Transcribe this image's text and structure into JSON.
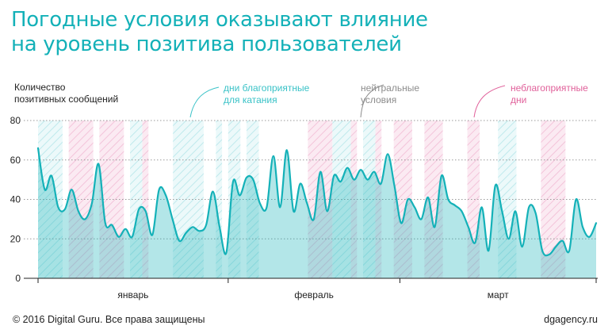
{
  "title_lines": [
    "Погодные условия оказывают влияние",
    "на уровень позитива пользователей"
  ],
  "footer": {
    "copyright": "© 2016 Digital Guru. Все права защищены",
    "site": "dgagency.ru"
  },
  "colors": {
    "title": "#14b1b8",
    "line": "#14b1b8",
    "area": "#b2e8ec",
    "favorable": "#39c2c7",
    "neutral": "#8c8c8c",
    "unfavorable": "#e0609a"
  },
  "chart_data": {
    "type": "area",
    "ylabel_lines": [
      "Количество",
      "позитивных сообщений"
    ],
    "ylim": [
      0,
      80
    ],
    "yticks": [
      "0",
      "20",
      "40",
      "60",
      "80"
    ],
    "xlim": [
      0,
      91
    ],
    "months": [
      {
        "label": "январь",
        "start": 0,
        "end": 31
      },
      {
        "label": "февраль",
        "start": 31,
        "end": 59
      },
      {
        "label": "март",
        "start": 59,
        "end": 91
      }
    ],
    "legend": [
      {
        "key": "favorable",
        "lines": [
          "дни благоприятные",
          "для катания"
        ]
      },
      {
        "key": "neutral",
        "lines": [
          "нейтральные",
          "условия"
        ]
      },
      {
        "key": "unfavorable",
        "lines": [
          "неблагоприятные",
          "дни"
        ]
      }
    ],
    "weather_periods": [
      {
        "start": 0,
        "end": 4,
        "type": "favorable"
      },
      {
        "start": 5,
        "end": 9,
        "type": "unfavorable"
      },
      {
        "start": 10,
        "end": 14,
        "type": "unfavorable"
      },
      {
        "start": 15,
        "end": 17,
        "type": "favorable"
      },
      {
        "start": 17,
        "end": 18,
        "type": "unfavorable"
      },
      {
        "start": 22,
        "end": 27,
        "type": "favorable"
      },
      {
        "start": 29,
        "end": 30,
        "type": "favorable"
      },
      {
        "start": 31,
        "end": 33,
        "type": "favorable"
      },
      {
        "start": 34,
        "end": 36,
        "type": "favorable"
      },
      {
        "start": 44,
        "end": 48,
        "type": "unfavorable"
      },
      {
        "start": 48,
        "end": 51,
        "type": "favorable"
      },
      {
        "start": 51,
        "end": 52,
        "type": "unfavorable"
      },
      {
        "start": 53,
        "end": 55,
        "type": "favorable"
      },
      {
        "start": 55,
        "end": 56,
        "type": "unfavorable"
      },
      {
        "start": 58,
        "end": 61,
        "type": "unfavorable"
      },
      {
        "start": 63,
        "end": 66,
        "type": "unfavorable"
      },
      {
        "start": 70,
        "end": 72,
        "type": "unfavorable"
      },
      {
        "start": 75,
        "end": 78,
        "type": "favorable"
      },
      {
        "start": 82,
        "end": 86,
        "type": "unfavorable"
      }
    ],
    "series": [
      {
        "values": [
          66,
          45,
          52,
          36,
          35,
          45,
          34,
          30,
          38,
          58,
          28,
          27,
          21,
          25,
          21,
          35,
          34,
          22,
          45,
          42,
          30,
          19,
          23,
          26,
          24,
          27,
          44,
          26,
          13,
          49,
          42,
          51,
          50,
          38,
          36,
          62,
          36,
          65,
          34,
          48,
          38,
          30,
          54,
          34,
          52,
          49,
          56,
          50,
          55,
          50,
          54,
          48,
          63,
          47,
          28,
          40,
          36,
          30,
          41,
          26,
          52,
          40,
          37,
          34,
          26,
          18,
          36,
          14,
          47,
          34,
          20,
          34,
          16,
          36,
          33,
          14,
          12,
          16,
          19,
          14,
          40,
          26,
          21,
          28
        ]
      }
    ]
  }
}
